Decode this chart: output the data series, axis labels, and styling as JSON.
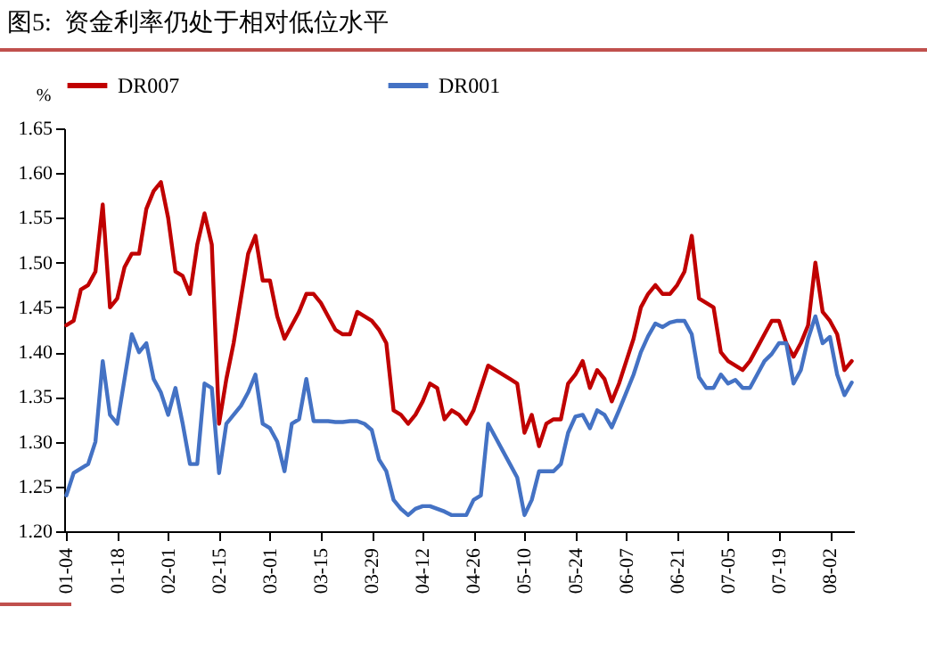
{
  "chart_data": {
    "type": "line",
    "title": "图5:  资金利率仍处于相对低位水平",
    "ylabel": "%",
    "categories": [
      "01-04",
      null,
      null,
      null,
      null,
      null,
      null,
      "01-18",
      null,
      null,
      null,
      null,
      null,
      null,
      "02-01",
      null,
      null,
      null,
      null,
      null,
      null,
      "02-15",
      null,
      null,
      null,
      null,
      null,
      null,
      "03-01",
      null,
      null,
      null,
      null,
      null,
      null,
      "03-15",
      null,
      null,
      null,
      null,
      null,
      null,
      "03-29",
      null,
      null,
      null,
      null,
      null,
      null,
      "04-12",
      null,
      null,
      null,
      null,
      null,
      null,
      "04-26",
      null,
      null,
      null,
      null,
      null,
      null,
      "05-10",
      null,
      null,
      null,
      null,
      null,
      null,
      "05-24",
      null,
      null,
      null,
      null,
      null,
      null,
      "06-07",
      null,
      null,
      null,
      null,
      null,
      null,
      "06-21",
      null,
      null,
      null,
      null,
      null,
      null,
      "07-05",
      null,
      null,
      null,
      null,
      null,
      null,
      "07-19",
      null,
      null,
      null,
      null,
      null,
      null,
      "08-02",
      null,
      null,
      null
    ],
    "series": [
      {
        "name": "DR007",
        "color": "#c00000",
        "values": [
          1.43,
          1.435,
          1.47,
          1.475,
          1.49,
          1.565,
          1.45,
          1.46,
          1.495,
          1.51,
          1.51,
          1.56,
          1.58,
          1.59,
          1.55,
          1.49,
          1.485,
          1.465,
          1.52,
          1.555,
          1.52,
          1.32,
          1.37,
          1.41,
          1.46,
          1.51,
          1.53,
          1.48,
          1.48,
          1.44,
          1.415,
          1.43,
          1.445,
          1.465,
          1.465,
          1.455,
          1.44,
          1.425,
          1.42,
          1.42,
          1.445,
          1.44,
          1.435,
          1.425,
          1.41,
          1.335,
          1.33,
          1.32,
          1.33,
          1.345,
          1.365,
          1.36,
          1.325,
          1.335,
          1.33,
          1.32,
          1.335,
          1.36,
          1.385,
          1.38,
          1.375,
          1.37,
          1.365,
          1.31,
          1.33,
          1.295,
          1.32,
          1.325,
          1.325,
          1.365,
          1.375,
          1.39,
          1.36,
          1.38,
          1.37,
          1.345,
          1.365,
          1.39,
          1.415,
          1.45,
          1.465,
          1.475,
          1.465,
          1.465,
          1.475,
          1.49,
          1.53,
          1.46,
          1.455,
          1.45,
          1.4,
          1.39,
          1.385,
          1.38,
          1.39,
          1.405,
          1.42,
          1.435,
          1.435,
          1.41,
          1.395,
          1.41,
          1.43,
          1.5,
          1.445,
          1.435,
          1.42,
          1.38,
          1.39
        ]
      },
      {
        "name": "DR001",
        "color": "#4472c4",
        "values": [
          1.24,
          1.265,
          1.27,
          1.275,
          1.3,
          1.39,
          1.33,
          1.32,
          1.37,
          1.42,
          1.4,
          1.41,
          1.37,
          1.355,
          1.33,
          1.36,
          1.32,
          1.275,
          1.275,
          1.365,
          1.36,
          1.265,
          1.32,
          1.33,
          1.34,
          1.355,
          1.375,
          1.32,
          1.315,
          1.3,
          1.267,
          1.32,
          1.325,
          1.37,
          1.323,
          1.323,
          1.323,
          1.322,
          1.322,
          1.323,
          1.323,
          1.32,
          1.313,
          1.28,
          1.267,
          1.235,
          1.225,
          1.218,
          1.225,
          1.228,
          1.228,
          1.225,
          1.222,
          1.218,
          1.218,
          1.218,
          1.235,
          1.24,
          1.32,
          1.305,
          1.29,
          1.275,
          1.26,
          1.218,
          1.235,
          1.267,
          1.267,
          1.267,
          1.275,
          1.31,
          1.328,
          1.33,
          1.315,
          1.335,
          1.33,
          1.316,
          1.335,
          1.355,
          1.375,
          1.4,
          1.418,
          1.432,
          1.428,
          1.433,
          1.435,
          1.435,
          1.42,
          1.372,
          1.36,
          1.36,
          1.375,
          1.365,
          1.369,
          1.36,
          1.36,
          1.375,
          1.39,
          1.398,
          1.41,
          1.41,
          1.365,
          1.38,
          1.415,
          1.44,
          1.41,
          1.417,
          1.375,
          1.352,
          1.366
        ]
      }
    ],
    "ylim": [
      1.2,
      1.65
    ],
    "yticks": [
      {
        "value": 1.2,
        "label": "1.20"
      },
      1.25,
      {
        "value": 1.3,
        "label": "1.30"
      },
      1.35,
      {
        "value": 1.4,
        "label": "1.40"
      },
      1.45,
      {
        "value": 1.5,
        "label": "1.50"
      },
      1.55,
      {
        "value": 1.6,
        "label": "1.60"
      },
      1.65
    ],
    "legend": "top"
  }
}
